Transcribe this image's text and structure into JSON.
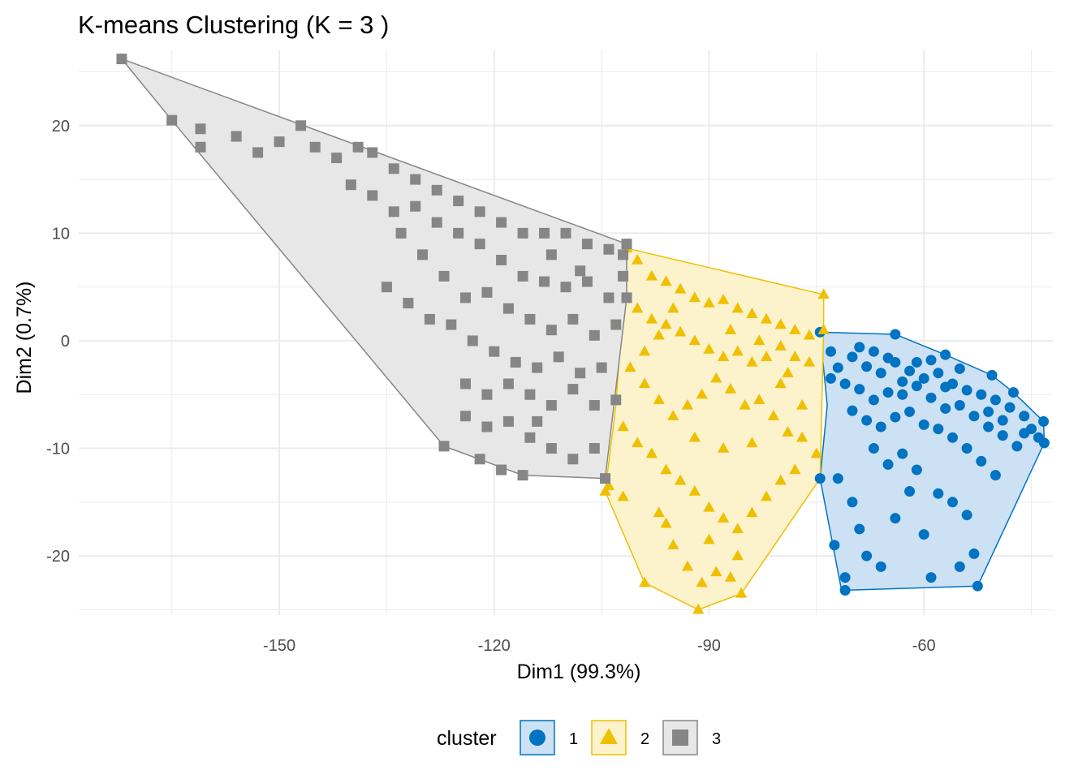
{
  "chart_data": {
    "type": "scatter",
    "title": "K-means Clustering (K = 3 )",
    "xlabel": "Dim1 (99.3%)",
    "ylabel": "Dim2 (0.7%)",
    "xlim": [
      -178,
      -42
    ],
    "ylim": [
      -25.5,
      27
    ],
    "x_ticks": [
      -150,
      -120,
      -90,
      -60
    ],
    "y_ticks": [
      -20,
      -10,
      0,
      10,
      20
    ],
    "grid": true,
    "legend_title": "cluster",
    "legend_position": "bottom",
    "series": [
      {
        "name": "1",
        "shape": "circle",
        "color": "#0073C2",
        "fill": "#CCE1F3",
        "hull": [
          [
            -74.5,
            0.8
          ],
          [
            -64,
            0.6
          ],
          [
            -57,
            -1.3
          ],
          [
            -50.5,
            -3.2
          ],
          [
            -47.5,
            -4.8
          ],
          [
            -43.3,
            -7.5
          ],
          [
            -43.2,
            -9.5
          ],
          [
            -52.5,
            -22.8
          ],
          [
            -71.5,
            -23.2
          ],
          [
            -74.5,
            -12.8
          ],
          [
            -73.5,
            -6.0
          ]
        ],
        "points": [
          [
            -70,
            -1.5
          ],
          [
            -68,
            -2.4
          ],
          [
            -66,
            -3.0
          ],
          [
            -64,
            -2.0
          ],
          [
            -62,
            -2.8
          ],
          [
            -60,
            -3.5
          ],
          [
            -58,
            -3.0
          ],
          [
            -56,
            -4.0
          ],
          [
            -54,
            -4.6
          ],
          [
            -52,
            -5.0
          ],
          [
            -50,
            -5.5
          ],
          [
            -48,
            -6.2
          ],
          [
            -46,
            -7.0
          ],
          [
            -45,
            -8.2
          ],
          [
            -44,
            -9.0
          ],
          [
            -72,
            -2.5
          ],
          [
            -71,
            -4.0
          ],
          [
            -69,
            -4.5
          ],
          [
            -67,
            -5.5
          ],
          [
            -65,
            -4.8
          ],
          [
            -63,
            -5.0
          ],
          [
            -61,
            -4.2
          ],
          [
            -59,
            -5.3
          ],
          [
            -57,
            -6.3
          ],
          [
            -55,
            -6.0
          ],
          [
            -53,
            -7.0
          ],
          [
            -51,
            -8.0
          ],
          [
            -49,
            -8.8
          ],
          [
            -47,
            -9.8
          ],
          [
            -70,
            -6.5
          ],
          [
            -68,
            -7.4
          ],
          [
            -66,
            -8.0
          ],
          [
            -64,
            -7.1
          ],
          [
            -62,
            -6.6
          ],
          [
            -60,
            -7.8
          ],
          [
            -58,
            -8.2
          ],
          [
            -56,
            -9.0
          ],
          [
            -54,
            -10.0
          ],
          [
            -52,
            -11.2
          ],
          [
            -50,
            -12.5
          ],
          [
            -73,
            -1.0
          ],
          [
            -67,
            -1.0
          ],
          [
            -61,
            -2.0
          ],
          [
            -55,
            -2.6
          ],
          [
            -72,
            -12.8
          ],
          [
            -70,
            -15.0
          ],
          [
            -69,
            -17.5
          ],
          [
            -68,
            -20.0
          ],
          [
            -71,
            -22.0
          ],
          [
            -66,
            -21.0
          ],
          [
            -64,
            -16.5
          ],
          [
            -62,
            -14.0
          ],
          [
            -60,
            -18.0
          ],
          [
            -58,
            -14.2
          ],
          [
            -56,
            -15.0
          ],
          [
            -54,
            -16.2
          ],
          [
            -53,
            -19.8
          ],
          [
            -52.5,
            -22.8
          ],
          [
            -55,
            -21.0
          ],
          [
            -59,
            -22.0
          ],
          [
            -63,
            -10.5
          ],
          [
            -65,
            -11.5
          ],
          [
            -61,
            -12.0
          ],
          [
            -67,
            -10.0
          ],
          [
            -72.5,
            -19.0
          ],
          [
            -71,
            -23.2
          ],
          [
            -74.5,
            -12.8
          ],
          [
            -73,
            -3.5
          ],
          [
            -43.3,
            -7.5
          ],
          [
            -43.2,
            -9.5
          ],
          [
            -47.5,
            -4.8
          ],
          [
            -50.5,
            -3.2
          ],
          [
            -57,
            -1.3
          ],
          [
            -64,
            0.6
          ],
          [
            -74.5,
            0.8
          ],
          [
            -69,
            -0.6
          ],
          [
            -65,
            -1.6
          ],
          [
            -63,
            -3.8
          ],
          [
            -59,
            -1.8
          ],
          [
            -57,
            -4.3
          ],
          [
            -51,
            -6.6
          ],
          [
            -49,
            -7.4
          ],
          [
            -46,
            -8.6
          ]
        ]
      },
      {
        "name": "2",
        "shape": "triangle",
        "color": "#EFC000",
        "fill": "#FCF2CC",
        "hull": [
          [
            -101.5,
            8.6
          ],
          [
            -74,
            4.3
          ],
          [
            -74,
            1.0
          ],
          [
            -74.5,
            -12.8
          ],
          [
            -85.5,
            -23.5
          ],
          [
            -91.5,
            -25.0
          ],
          [
            -99,
            -22.5
          ],
          [
            -104.5,
            -14.0
          ],
          [
            -103,
            -6.0
          ]
        ],
        "points": [
          [
            -100,
            7.5
          ],
          [
            -98,
            6.0
          ],
          [
            -96,
            5.5
          ],
          [
            -94,
            4.8
          ],
          [
            -92,
            4.0
          ],
          [
            -90,
            3.5
          ],
          [
            -88,
            3.8
          ],
          [
            -86,
            3.0
          ],
          [
            -84,
            2.5
          ],
          [
            -82,
            2.0
          ],
          [
            -80,
            1.5
          ],
          [
            -78,
            1.0
          ],
          [
            -76,
            0.5
          ],
          [
            -100,
            3.0
          ],
          [
            -98,
            2.0
          ],
          [
            -96,
            1.5
          ],
          [
            -94,
            0.8
          ],
          [
            -92,
            0.0
          ],
          [
            -90,
            -0.8
          ],
          [
            -88,
            -1.5
          ],
          [
            -86,
            -1.0
          ],
          [
            -84,
            -2.0
          ],
          [
            -82,
            -1.5
          ],
          [
            -80,
            -0.5
          ],
          [
            -78,
            -1.5
          ],
          [
            -76,
            -2.0
          ],
          [
            -101,
            -2.5
          ],
          [
            -99,
            -4.0
          ],
          [
            -97,
            -5.5
          ],
          [
            -95,
            -7.0
          ],
          [
            -93,
            -6.0
          ],
          [
            -91,
            -5.0
          ],
          [
            -89,
            -3.5
          ],
          [
            -87,
            -4.5
          ],
          [
            -85,
            -6.0
          ],
          [
            -83,
            -5.5
          ],
          [
            -81,
            -7.0
          ],
          [
            -79,
            -8.5
          ],
          [
            -77,
            -9.0
          ],
          [
            -75,
            -10.5
          ],
          [
            -102,
            -8.0
          ],
          [
            -100,
            -9.5
          ],
          [
            -98,
            -10.5
          ],
          [
            -96,
            -12.0
          ],
          [
            -94,
            -13.0
          ],
          [
            -92,
            -14.0
          ],
          [
            -90,
            -15.5
          ],
          [
            -88,
            -16.5
          ],
          [
            -86,
            -17.5
          ],
          [
            -84,
            -16.0
          ],
          [
            -82,
            -14.5
          ],
          [
            -80,
            -13.0
          ],
          [
            -78,
            -12.0
          ],
          [
            -104,
            -13.5
          ],
          [
            -102,
            -14.5
          ],
          [
            -97,
            -16.0
          ],
          [
            -95,
            -19.0
          ],
          [
            -93,
            -21.0
          ],
          [
            -91,
            -22.5
          ],
          [
            -89,
            -21.5
          ],
          [
            -87,
            -22.0
          ],
          [
            -85.5,
            -23.5
          ],
          [
            -91.5,
            -25.0
          ],
          [
            -99,
            -22.5
          ],
          [
            -104.5,
            -14.0
          ],
          [
            -101.5,
            8.6
          ],
          [
            -74,
            4.3
          ],
          [
            -74,
            1.0
          ],
          [
            -96,
            -17.0
          ],
          [
            -90,
            -18.5
          ],
          [
            -86,
            -20.0
          ],
          [
            -88,
            -10.0
          ],
          [
            -92,
            -9.0
          ],
          [
            -84,
            -9.5
          ],
          [
            -80,
            -4.0
          ],
          [
            -97,
            0.5
          ],
          [
            -99,
            -1.0
          ],
          [
            -95,
            3.0
          ],
          [
            -87,
            1.0
          ],
          [
            -83,
            0.0
          ],
          [
            -79,
            -3.0
          ],
          [
            -77,
            -6.0
          ]
        ]
      },
      {
        "name": "3",
        "shape": "square",
        "color": "#868686",
        "fill": "#E7E7E7",
        "hull": [
          [
            -172,
            26.2
          ],
          [
            -101.5,
            9.0
          ],
          [
            -101.5,
            4.0
          ],
          [
            -104.5,
            -12.8
          ],
          [
            -116,
            -12.5
          ],
          [
            -127,
            -9.8
          ],
          [
            -165,
            20.5
          ]
        ],
        "points": [
          [
            -172,
            26.2
          ],
          [
            -165,
            20.5
          ],
          [
            -161,
            18.0
          ],
          [
            -161,
            19.7
          ],
          [
            -156,
            19.0
          ],
          [
            -153,
            17.5
          ],
          [
            -150,
            18.5
          ],
          [
            -147,
            20.0
          ],
          [
            -145,
            18.0
          ],
          [
            -142,
            17.0
          ],
          [
            -139,
            18.0
          ],
          [
            -137,
            17.5
          ],
          [
            -134,
            16.0
          ],
          [
            -131,
            15.0
          ],
          [
            -128,
            14.0
          ],
          [
            -125,
            13.0
          ],
          [
            -122,
            12.0
          ],
          [
            -119,
            11.0
          ],
          [
            -116,
            10.0
          ],
          [
            -113,
            10.0
          ],
          [
            -110,
            10.0
          ],
          [
            -107,
            9.0
          ],
          [
            -104,
            8.5
          ],
          [
            -102,
            8.0
          ],
          [
            -140,
            14.5
          ],
          [
            -137,
            13.5
          ],
          [
            -134,
            12.0
          ],
          [
            -131,
            12.5
          ],
          [
            -128,
            11.0
          ],
          [
            -125,
            10.0
          ],
          [
            -122,
            9.0
          ],
          [
            -119,
            7.5
          ],
          [
            -116,
            6.0
          ],
          [
            -113,
            5.5
          ],
          [
            -110,
            5.0
          ],
          [
            -107,
            5.5
          ],
          [
            -104,
            4.0
          ],
          [
            -102,
            6.0
          ],
          [
            -133,
            10.0
          ],
          [
            -130,
            8.0
          ],
          [
            -127,
            6.0
          ],
          [
            -124,
            4.0
          ],
          [
            -121,
            4.5
          ],
          [
            -118,
            3.0
          ],
          [
            -115,
            2.0
          ],
          [
            -112,
            1.0
          ],
          [
            -109,
            2.0
          ],
          [
            -106,
            0.5
          ],
          [
            -103,
            1.5
          ],
          [
            -135,
            5.0
          ],
          [
            -132,
            3.5
          ],
          [
            -129,
            2.0
          ],
          [
            -126,
            1.5
          ],
          [
            -123,
            0.0
          ],
          [
            -120,
            -1.0
          ],
          [
            -117,
            -2.0
          ],
          [
            -114,
            -2.5
          ],
          [
            -111,
            -1.5
          ],
          [
            -108,
            -3.0
          ],
          [
            -105,
            -2.5
          ],
          [
            -124,
            -4.0
          ],
          [
            -121,
            -5.0
          ],
          [
            -118,
            -4.0
          ],
          [
            -115,
            -5.0
          ],
          [
            -112,
            -6.0
          ],
          [
            -109,
            -4.5
          ],
          [
            -106,
            -6.0
          ],
          [
            -103,
            -5.5
          ],
          [
            -124,
            -7.0
          ],
          [
            -121,
            -8.0
          ],
          [
            -118,
            -7.5
          ],
          [
            -115,
            -9.0
          ],
          [
            -112,
            -10.0
          ],
          [
            -109,
            -11.0
          ],
          [
            -106,
            -10.0
          ],
          [
            -104.5,
            -12.8
          ],
          [
            -116,
            -12.5
          ],
          [
            -127,
            -9.8
          ],
          [
            -122,
            -11.0
          ],
          [
            -119,
            -12.0
          ],
          [
            -101.5,
            9.0
          ],
          [
            -101.5,
            4.0
          ],
          [
            -112,
            8.0
          ],
          [
            -108,
            6.5
          ],
          [
            -114,
            -7.5
          ]
        ]
      }
    ]
  }
}
